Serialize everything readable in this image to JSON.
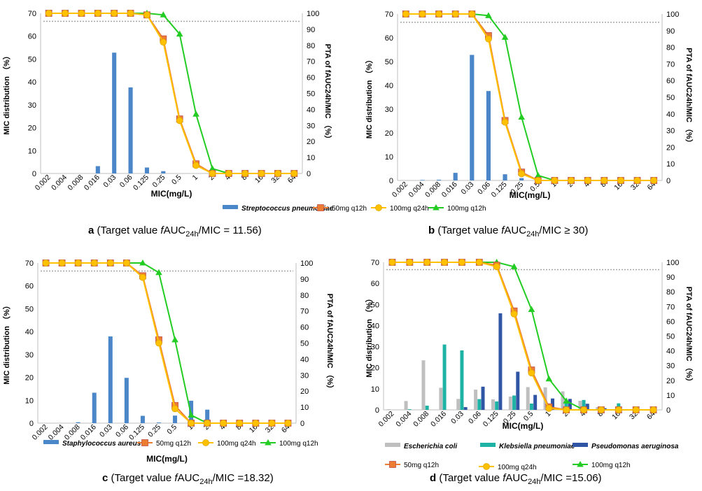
{
  "colors": {
    "sp": "#4a86c8",
    "ec": "#bfbfbf",
    "kp": "#1fb3a6",
    "pa": "#2f55a4",
    "q12_50": "#ed7d31",
    "q24_100": "#ffc000",
    "q12_100": "#22cc22",
    "target": "#a6a6a6"
  },
  "chart_data": [
    {
      "id": "a",
      "type": "bar+line",
      "categories": [
        "0.002",
        "0.004",
        "0.008",
        "0.016",
        "0.03",
        "0.06",
        "0.125",
        "0.25",
        "0.5",
        "1",
        "2",
        "4",
        "8",
        "16",
        "32",
        "64"
      ],
      "xlabel": "MIC(mg/L)",
      "ylabel_left": "MIC distribution （%）",
      "ylabel_right": "PTA of fAUC24h/MIC （%）",
      "ylim_left": [
        0,
        70
      ],
      "yticks_left": [
        "0",
        "10",
        "20",
        "30",
        "40",
        "50",
        "60",
        "70"
      ],
      "ylim_right": [
        0,
        100
      ],
      "yticks_right": [
        "0",
        "10",
        "20",
        "30",
        "40",
        "50",
        "60",
        "70",
        "80",
        "90",
        "100"
      ],
      "target_line": 95,
      "bars": [
        {
          "name": "Streptococcus pneumoniae",
          "color": "sp",
          "values": [
            0,
            0,
            0,
            3.2,
            52.8,
            37.6,
            2.6,
            1.0,
            0,
            0,
            0,
            0,
            0,
            0,
            0,
            0
          ]
        }
      ],
      "lines": [
        {
          "name": "50mg q12h",
          "color": "q12_50",
          "marker": "square",
          "values": [
            100,
            100,
            100,
            100,
            100,
            100,
            99,
            84,
            34,
            6,
            0,
            0,
            0,
            0,
            0,
            0
          ]
        },
        {
          "name": "100mg q24h",
          "color": "q24_100",
          "marker": "circle",
          "values": [
            100,
            100,
            100,
            100,
            100,
            100,
            99,
            82,
            33,
            5,
            0,
            0,
            0,
            0,
            0,
            0
          ]
        },
        {
          "name": "100mg q12h",
          "color": "q12_100",
          "marker": "triangle",
          "values": [
            100,
            100,
            100,
            100,
            100,
            100,
            100,
            99,
            87,
            37,
            3,
            0,
            0,
            0,
            0,
            0
          ]
        }
      ],
      "legend": [
        "Streptococcus pneumoniae",
        "50mg q12h",
        "100mg q24h",
        "100mg q12h"
      ],
      "caption": {
        "letter": "a",
        "prefix": " (Target value ",
        "f": "f",
        "auc": "AUC",
        "sub": "24h",
        "rest": "/MIC = 11.56)"
      }
    },
    {
      "id": "b",
      "type": "bar+line",
      "categories": [
        "0.002",
        "0.004",
        "0.008",
        "0.016",
        "0.03",
        "0.06",
        "0.125",
        "0.25",
        "0.5",
        "1",
        "2",
        "4",
        "8",
        "16",
        "32",
        "64"
      ],
      "xlabel": "MIC(mg/L)",
      "ylabel_left": "MIC distribution （%）",
      "ylabel_right": "PTA of fAUC24h/MIC （%）",
      "ylim_left": [
        0,
        70
      ],
      "yticks_left": [
        "0",
        "10",
        "20",
        "30",
        "40",
        "50",
        "60",
        "70"
      ],
      "ylim_right": [
        0,
        100
      ],
      "yticks_right": [
        "0",
        "10",
        "20",
        "30",
        "40",
        "50",
        "60",
        "70",
        "80",
        "90",
        "100"
      ],
      "target_line": 95,
      "bars": [
        {
          "name": "Streptococcus pneumoniae",
          "color": "sp",
          "values": [
            0,
            0.2,
            0.3,
            3.2,
            52.8,
            37.6,
            2.6,
            1.0,
            0,
            0,
            0,
            0,
            0,
            0,
            0,
            0
          ]
        }
      ],
      "lines": [
        {
          "name": "50mg q12h",
          "color": "q12_50",
          "marker": "square",
          "values": [
            100,
            100,
            100,
            100,
            100,
            87,
            36,
            5,
            0,
            0,
            0,
            0,
            0,
            0,
            0,
            0
          ]
        },
        {
          "name": "100mg q24h",
          "color": "q24_100",
          "marker": "circle",
          "values": [
            100,
            100,
            100,
            100,
            100,
            85,
            35,
            4,
            0,
            0,
            0,
            0,
            0,
            0,
            0,
            0
          ]
        },
        {
          "name": "100mg q12h",
          "color": "q12_100",
          "marker": "triangle",
          "values": [
            100,
            100,
            100,
            100,
            100,
            99,
            86,
            38,
            3,
            0,
            0,
            0,
            0,
            0,
            0,
            0
          ]
        }
      ],
      "legend": [],
      "caption": {
        "letter": "b",
        "prefix": " (Target value ",
        "f": "f",
        "auc": "AUC",
        "sub": "24h",
        "rest": "/MIC ≥ 30)"
      }
    },
    {
      "id": "c",
      "type": "bar+line",
      "categories": [
        "0.002",
        "0.004",
        "0.008",
        "0.016",
        "0.03",
        "0.06",
        "0.125",
        "0.25",
        "0.5",
        "1",
        "2",
        "4",
        "8",
        "16",
        "32",
        "64"
      ],
      "xlabel": "MIC(mg/L)",
      "ylabel_left": "MIC distribution （%）",
      "ylabel_right": "PTA of fAUC24h/MIC （%）",
      "ylim_left": [
        0,
        70
      ],
      "yticks_left": [
        "0",
        "10",
        "20",
        "30",
        "40",
        "50",
        "60",
        "70"
      ],
      "ylim_right": [
        0,
        100
      ],
      "yticks_right": [
        "0",
        "10",
        "20",
        "30",
        "40",
        "50",
        "60",
        "70",
        "80",
        "90",
        "100"
      ],
      "target_line": 95,
      "bars": [
        {
          "name": "Staphylococcus aureus",
          "color": "sp",
          "values": [
            0,
            0,
            0.4,
            13.3,
            37.9,
            19.8,
            3.2,
            0.3,
            3.3,
            9.8,
            5.9,
            0,
            0,
            0,
            0,
            0
          ]
        }
      ],
      "lines": [
        {
          "name": "50mg q12h",
          "color": "q12_50",
          "marker": "square",
          "values": [
            100,
            100,
            100,
            100,
            100,
            100,
            92,
            52,
            11,
            0,
            0,
            0,
            0,
            0,
            0,
            0
          ]
        },
        {
          "name": "100mg q24h",
          "color": "q24_100",
          "marker": "circle",
          "values": [
            100,
            100,
            100,
            100,
            100,
            100,
            91,
            50,
            9,
            0,
            0,
            0,
            0,
            0,
            0,
            0
          ]
        },
        {
          "name": "100mg q12h",
          "color": "q12_100",
          "marker": "triangle",
          "values": [
            100,
            100,
            100,
            100,
            100,
            100,
            100,
            94,
            52,
            5,
            0,
            0,
            0,
            0,
            0,
            0
          ]
        }
      ],
      "legend": [
        "Staphylococcus aureus",
        "50mg q12h",
        "100mg q24h",
        "100mg q12h"
      ],
      "caption": {
        "letter": "c",
        "prefix": " (Target value ",
        "f": "f",
        "auc": "AUC",
        "sub": "24h",
        "rest": "/MIC =18.32)"
      }
    },
    {
      "id": "d",
      "type": "bar+line",
      "categories": [
        "0.002",
        "0.004",
        "0.008",
        "0.016",
        "0.03",
        "0.06",
        "0.125",
        "0.25",
        "0.5",
        "1",
        "2",
        "4",
        "8",
        "16",
        "32",
        "64"
      ],
      "xlabel": "MIC(mg/L)",
      "ylabel_left": "MIC distribution （%）",
      "ylabel_right": "PTA of fAUC24h/MIC （%）",
      "ylim_left": [
        0,
        70
      ],
      "yticks_left": [
        "0",
        "10",
        "20",
        "30",
        "40",
        "50",
        "60",
        "70"
      ],
      "ylim_right": [
        0,
        100
      ],
      "yticks_right": [
        "0",
        "10",
        "20",
        "30",
        "40",
        "50",
        "60",
        "70",
        "80",
        "90",
        "100"
      ],
      "target_line": 95,
      "bars": [
        {
          "name": "Escherichia coli",
          "color": "ec",
          "values": [
            0.3,
            4.2,
            23.5,
            10.5,
            5.2,
            9.6,
            5.0,
            6.3,
            10.8,
            10.7,
            8.8,
            4.3,
            1.3,
            0.3,
            0.3,
            0
          ]
        },
        {
          "name": "Klebsiella pneumoniae",
          "color": "kp",
          "values": [
            0,
            0.3,
            2.0,
            31.0,
            28.2,
            5.1,
            4.0,
            6.8,
            3.0,
            1.5,
            3.7,
            4.7,
            0.7,
            3.1,
            1.6,
            0
          ]
        },
        {
          "name": "Pseudomonas aeruginosa",
          "color": "pa",
          "values": [
            0,
            0,
            0,
            0,
            1.3,
            11.0,
            45.8,
            18.1,
            7.1,
            5.4,
            5.2,
            2.9,
            0.8,
            0,
            0,
            0
          ]
        }
      ],
      "lines": [
        {
          "name": "50mg q12h",
          "color": "q12_50",
          "marker": "square",
          "values": [
            100,
            100,
            100,
            100,
            100,
            100,
            98,
            67,
            27,
            2,
            0,
            0,
            0,
            0,
            0,
            0
          ]
        },
        {
          "name": "100mg q24h",
          "color": "q24_100",
          "marker": "circle",
          "values": [
            100,
            100,
            100,
            100,
            100,
            100,
            97,
            65,
            25,
            1,
            0,
            0,
            0,
            0,
            0,
            0
          ]
        },
        {
          "name": "100mg q12h",
          "color": "q12_100",
          "marker": "triangle",
          "values": [
            100,
            100,
            100,
            100,
            100,
            100,
            100,
            97,
            68,
            21,
            6,
            0,
            0,
            0,
            0,
            0
          ]
        }
      ],
      "legend": [
        "Escherichia coli",
        "Klebsiella pneumoniae",
        "Pseudomonas aeruginosa",
        "50mg q12h",
        "100mg q24h",
        "100mg q12h"
      ],
      "caption": {
        "letter": "d",
        "prefix": " (Target value ",
        "f": "f",
        "auc": "AUC",
        "sub": "24h",
        "rest": "/MIC =15.06)"
      }
    }
  ]
}
